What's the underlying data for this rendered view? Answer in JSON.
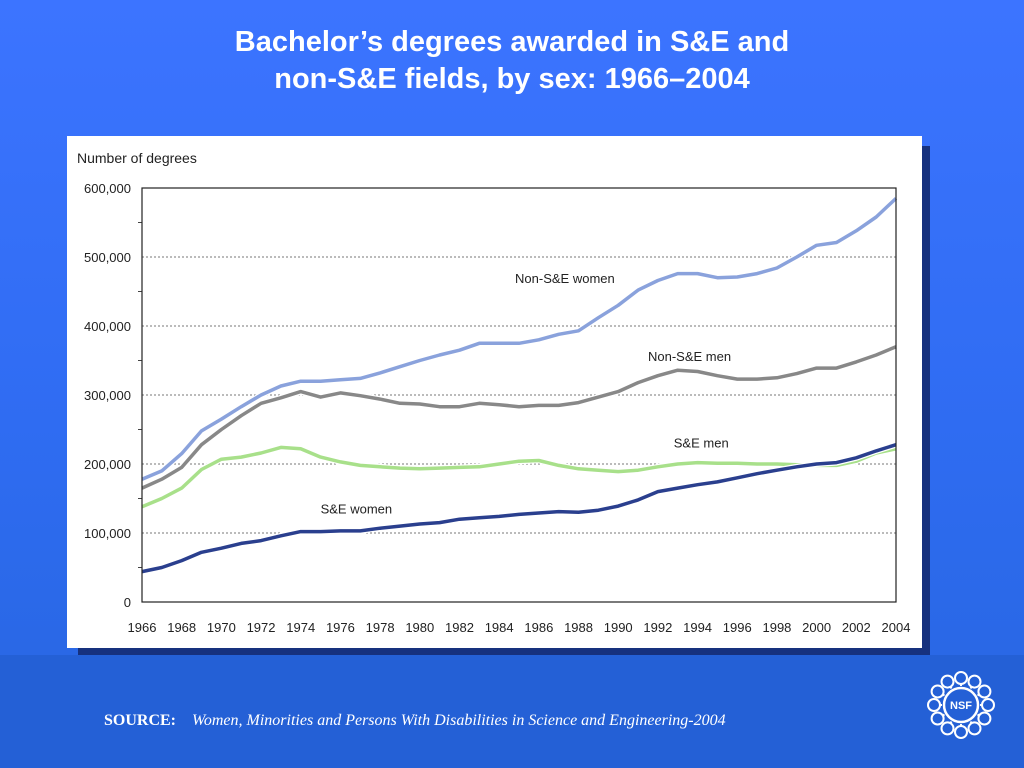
{
  "title": {
    "line1": "Bachelor’s degrees awarded in S&E and",
    "line2": "non-S&E fields, by sex: 1966–2004"
  },
  "source": {
    "label": "SOURCE:",
    "text": "Women, Minorities and Persons With Disabilities in Science and Engineering-2004"
  },
  "logo": {
    "text": "NSF",
    "icon": "nsf-logo-icon"
  },
  "colors": {
    "background": "#2f6cf2",
    "non_se_women": "#8aa2dc",
    "non_se_men": "#888888",
    "se_men": "#a8e08a",
    "se_women": "#2a3f8e"
  },
  "chart_data": {
    "type": "line",
    "ylabel": "Number of degrees",
    "xlabel": "",
    "ylim": [
      0,
      600000
    ],
    "yticks": [
      "0",
      "100,000",
      "200,000",
      "300,000",
      "400,000",
      "500,000",
      "600,000"
    ],
    "xticks": [
      "1966",
      "1968",
      "1970",
      "1972",
      "1974",
      "1976",
      "1978",
      "1980",
      "1982",
      "1984",
      "1986",
      "1988",
      "1990",
      "1992",
      "1994",
      "1996",
      "1998",
      "2000",
      "2002",
      "2004"
    ],
    "grid": true,
    "x": [
      1966,
      1967,
      1968,
      1969,
      1970,
      1971,
      1972,
      1973,
      1974,
      1975,
      1976,
      1977,
      1978,
      1979,
      1980,
      1981,
      1982,
      1983,
      1984,
      1985,
      1986,
      1987,
      1988,
      1989,
      1990,
      1991,
      1992,
      1993,
      1994,
      1995,
      1996,
      1997,
      1998,
      1999,
      2000,
      2001,
      2002,
      2003,
      2004
    ],
    "series": [
      {
        "name": "Non-S&E women",
        "color": "#8aa2dc",
        "values": [
          178000,
          190000,
          215000,
          248000,
          265000,
          283000,
          300000,
          313000,
          320000,
          320000,
          322000,
          324000,
          332000,
          341000,
          350000,
          358000,
          365000,
          375000,
          375000,
          375000,
          380000,
          388000,
          393000,
          412000,
          430000,
          452000,
          466000,
          476000,
          476000,
          470000,
          471000,
          476000,
          484000,
          500000,
          517000,
          521000,
          538000,
          558000,
          585000
        ]
      },
      {
        "name": "Non-S&E men",
        "color": "#888888",
        "values": [
          165000,
          178000,
          195000,
          228000,
          250000,
          270000,
          288000,
          296000,
          305000,
          297000,
          303000,
          299000,
          294000,
          288000,
          287000,
          283000,
          283000,
          288000,
          286000,
          283000,
          285000,
          285000,
          289000,
          297000,
          305000,
          318000,
          328000,
          336000,
          334000,
          328000,
          323000,
          323000,
          325000,
          331000,
          339000,
          339000,
          348000,
          358000,
          370000
        ]
      },
      {
        "name": "S&E men",
        "color": "#a8e08a",
        "values": [
          138000,
          150000,
          165000,
          192000,
          207000,
          210000,
          216000,
          224000,
          222000,
          210000,
          203000,
          198000,
          196000,
          194000,
          193000,
          194000,
          195000,
          196000,
          200000,
          204000,
          205000,
          198000,
          193000,
          191000,
          189000,
          191000,
          196000,
          200000,
          202000,
          201000,
          201000,
          200000,
          200000,
          199000,
          198000,
          198000,
          204000,
          216000,
          222000
        ]
      },
      {
        "name": "S&E women",
        "color": "#2a3f8e",
        "values": [
          44000,
          50000,
          60000,
          72000,
          78000,
          85000,
          89000,
          96000,
          102000,
          102000,
          103000,
          103000,
          107000,
          110000,
          113000,
          115000,
          120000,
          122000,
          124000,
          127000,
          129000,
          131000,
          130000,
          133000,
          139000,
          148000,
          160000,
          165000,
          170000,
          174000,
          180000,
          186000,
          191000,
          196000,
          200000,
          202000,
          209000,
          219000,
          228000
        ]
      }
    ],
    "annotations": [
      {
        "text": "Non-S&E women",
        "series": "Non-S&E women"
      },
      {
        "text": "Non-S&E men",
        "series": "Non-S&E men"
      },
      {
        "text": "S&E men",
        "series": "S&E men"
      },
      {
        "text": "S&E women",
        "series": "S&E women"
      }
    ]
  }
}
